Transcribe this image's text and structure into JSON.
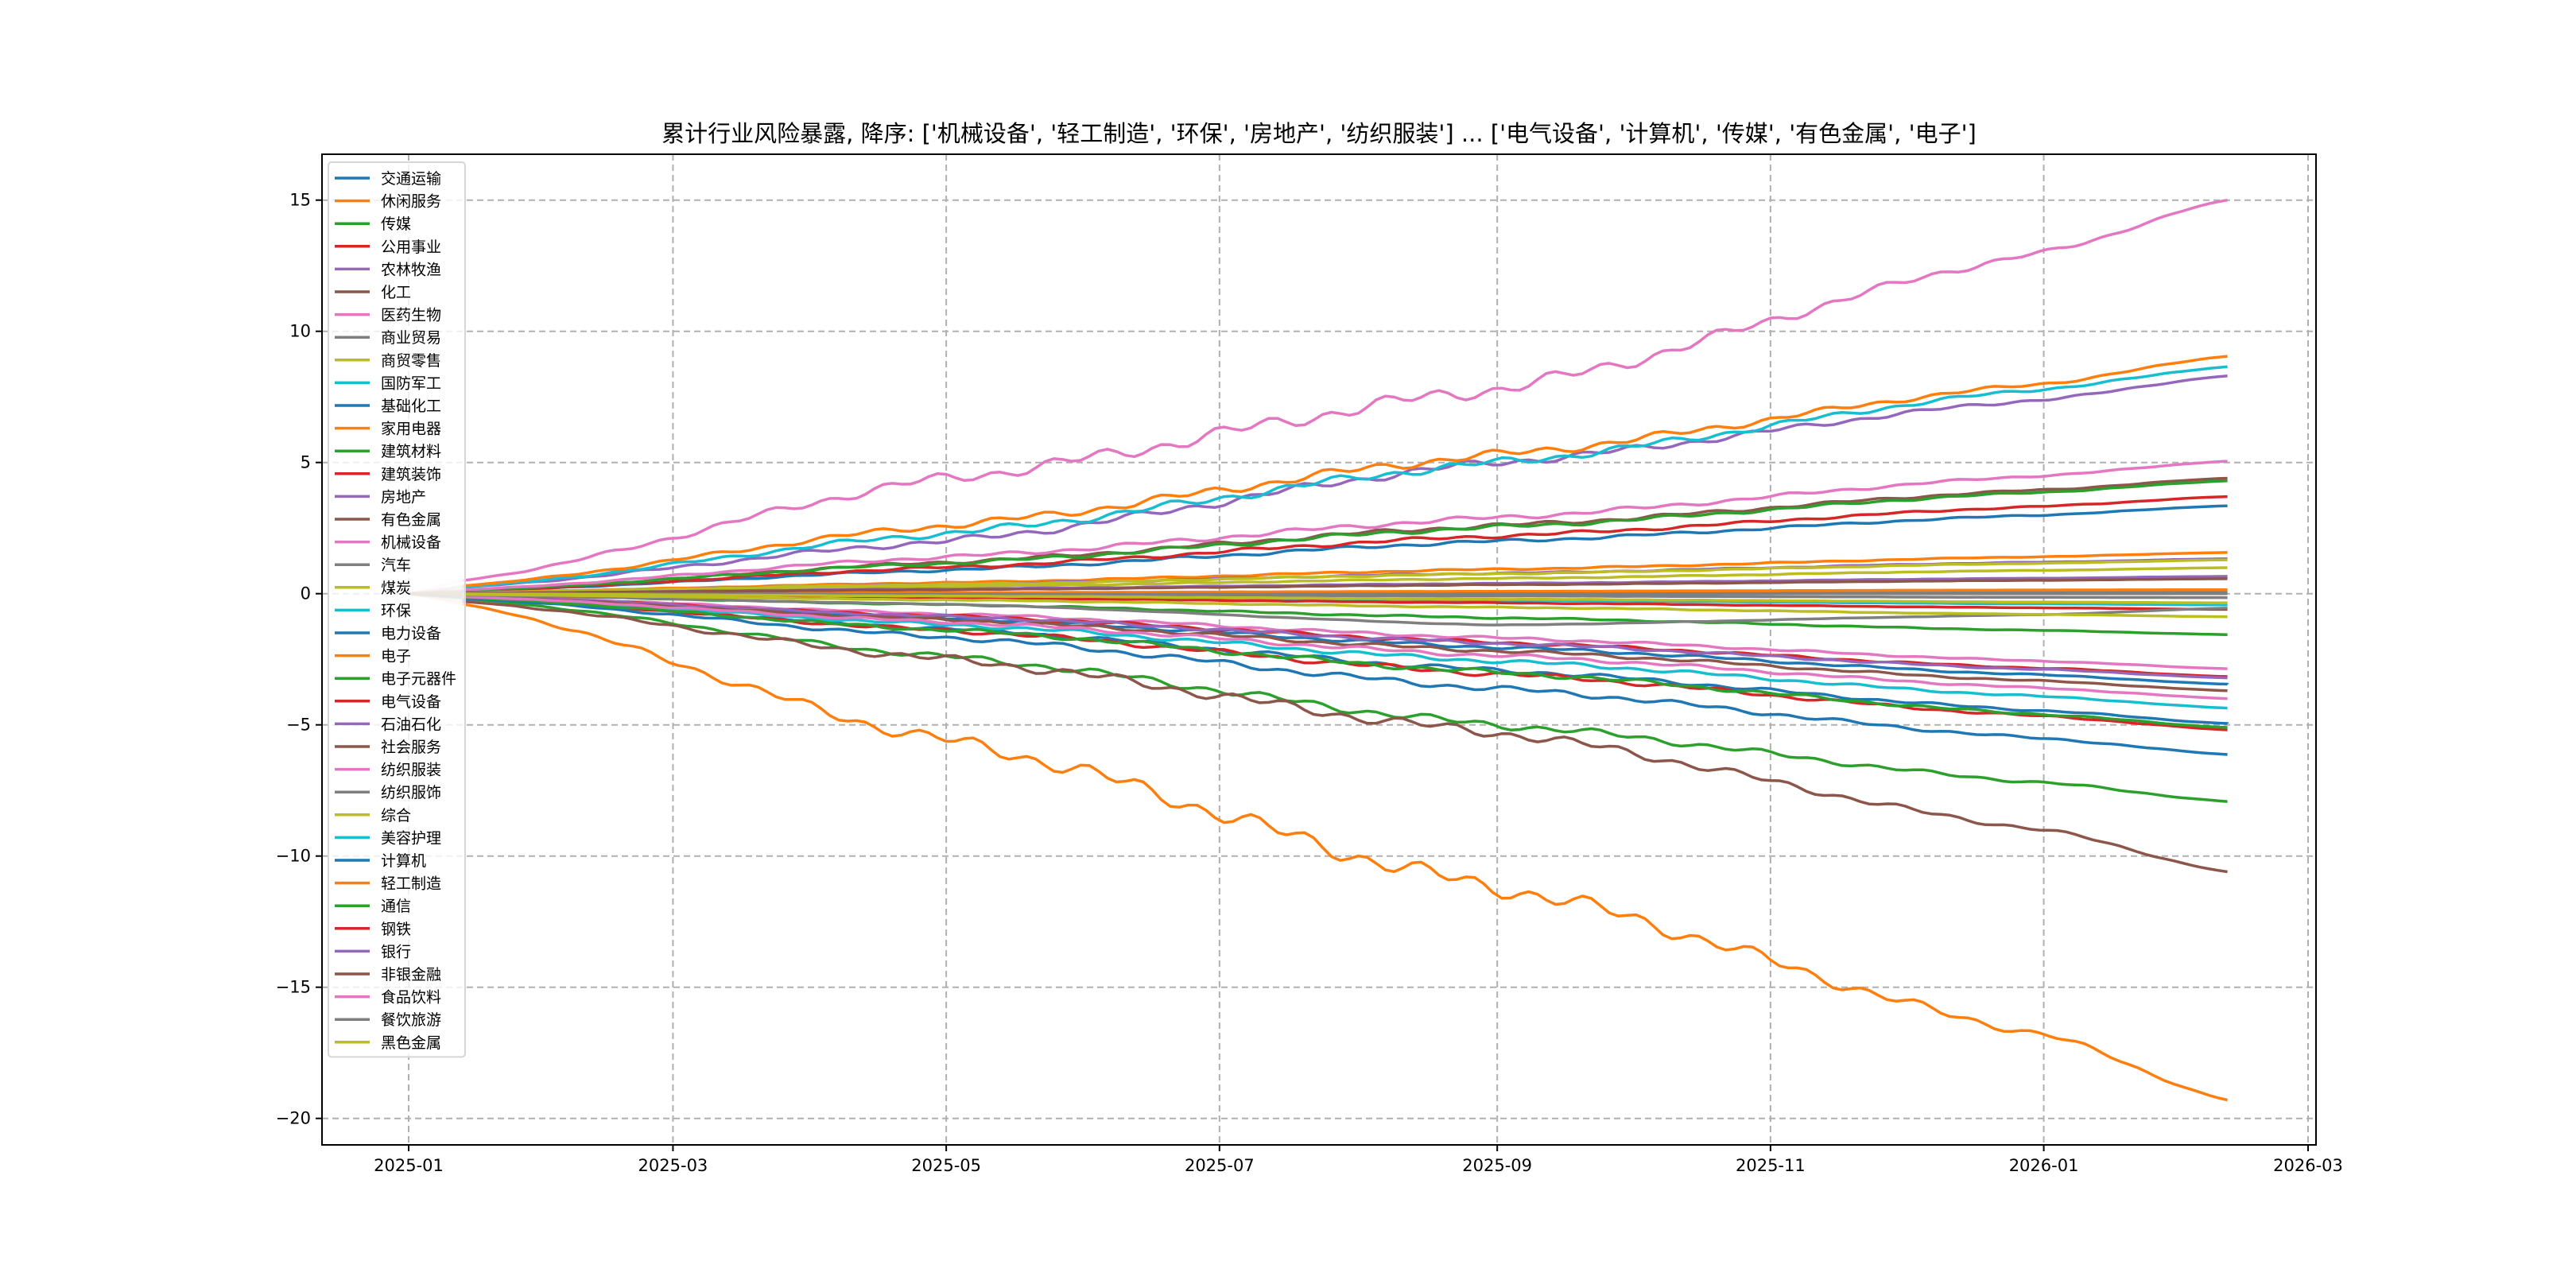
{
  "chart_data": {
    "type": "line",
    "title": "累计行业风险暴露, 降序: ['机械设备', '轻工制造', '环保', '房地产', '纺织服装'] ... ['电气设备', '计算机', '传媒', '有色金属', '电子']",
    "xlabel": "",
    "ylabel": "",
    "ylim": [
      -21,
      16.7
    ],
    "xlim": [
      "2024-12-20",
      "2026-03-05"
    ],
    "grid": true,
    "legend_position": "upper-left",
    "yticks": [
      -20,
      -15,
      -10,
      -5,
      0,
      5,
      10,
      15
    ],
    "ytick_labels": [
      "−20",
      "−15",
      "−10",
      "−5",
      "0",
      "5",
      "10",
      "15"
    ],
    "xticks": [
      "2025-01-01",
      "2025-03-01",
      "2025-05-01",
      "2025-07-01",
      "2025-09-01",
      "2025-11-01",
      "2026-01-01",
      "2026-03-01"
    ],
    "xtick_labels": [
      "2025-01",
      "2025-03",
      "2025-05",
      "2025-07",
      "2025-09",
      "2025-11",
      "2026-01",
      "2026-03"
    ],
    "x": [
      "2025-01-13",
      "2025-05-01",
      "2025-09-01",
      "2026-01-01",
      "2026-02-11"
    ],
    "series": [
      {
        "name": "交通运输",
        "color": "#1f77b4",
        "values": [
          0.1,
          0.9,
          2.0,
          3.0,
          3.35
        ]
      },
      {
        "name": "休闲服务",
        "color": "#ff7f0e",
        "values": [
          0.05,
          0.42,
          0.93,
          1.41,
          1.57
        ]
      },
      {
        "name": "传媒",
        "color": "#2ca02c",
        "values": [
          -0.2,
          -2.4,
          -5.0,
          -7.2,
          -7.92
        ]
      },
      {
        "name": "公用事业",
        "color": "#d62728",
        "values": [
          0.1,
          1.0,
          2.2,
          3.33,
          3.7
        ]
      },
      {
        "name": "农林牧渔",
        "color": "#9467bd",
        "values": [
          0.04,
          0.36,
          0.78,
          1.2,
          1.33
        ]
      },
      {
        "name": "化工",
        "color": "#8c564b",
        "values": [
          0.1,
          1.2,
          2.6,
          3.96,
          4.4
        ]
      },
      {
        "name": "医药生物",
        "color": "#e377c2",
        "values": [
          -0.08,
          -0.77,
          -1.69,
          -2.57,
          -2.86
        ]
      },
      {
        "name": "商业贸易",
        "color": "#7f7f7f",
        "values": [
          0.0,
          0.02,
          0.05,
          0.07,
          0.08
        ]
      },
      {
        "name": "商贸零售",
        "color": "#bcbd22",
        "values": [
          0.04,
          0.35,
          0.76,
          1.16,
          1.29
        ]
      },
      {
        "name": "国防军工",
        "color": "#17becf",
        "values": [
          -0.01,
          -0.12,
          -0.25,
          -0.39,
          -0.43
        ]
      },
      {
        "name": "基础化工",
        "color": "#1f77b4",
        "values": [
          -0.1,
          -0.93,
          -2.04,
          -3.1,
          -3.45
        ]
      },
      {
        "name": "家用电器",
        "color": "#ff7f0e",
        "values": [
          0.0,
          0.04,
          0.09,
          0.14,
          0.15
        ]
      },
      {
        "name": "建筑材料",
        "color": "#2ca02c",
        "values": [
          0.13,
          1.16,
          2.54,
          3.87,
          4.3
        ]
      },
      {
        "name": "建筑装饰",
        "color": "#d62728",
        "values": [
          -0.02,
          -0.16,
          -0.35,
          -0.54,
          -0.6
        ]
      },
      {
        "name": "房地产",
        "color": "#9467bd",
        "values": [
          0.25,
          2.0,
          5.0,
          7.4,
          8.3
        ]
      },
      {
        "name": "有色金属",
        "color": "#8c564b",
        "values": [
          -0.3,
          -2.5,
          -5.3,
          -9.0,
          -10.6
        ]
      },
      {
        "name": "机械设备",
        "color": "#e377c2",
        "values": [
          0.5,
          4.4,
          7.8,
          13.0,
          15.0
        ]
      },
      {
        "name": "汽车",
        "color": "#7f7f7f",
        "values": [
          0.0,
          -0.04,
          -0.09,
          -0.14,
          -0.15
        ]
      },
      {
        "name": "煤炭",
        "color": "#bcbd22",
        "values": [
          0.03,
          0.27,
          0.58,
          0.89,
          0.99
        ]
      },
      {
        "name": "环保",
        "color": "#17becf",
        "values": [
          0.25,
          2.3,
          5.0,
          7.8,
          8.65
        ]
      },
      {
        "name": "电力设备",
        "color": "#1f77b4",
        "values": [
          -0.15,
          -1.34,
          -2.92,
          -4.46,
          -4.95
        ]
      },
      {
        "name": "电子",
        "color": "#ff7f0e",
        "values": [
          -0.4,
          -5.6,
          -11.2,
          -16.8,
          -19.3
        ]
      },
      {
        "name": "电子元器件",
        "color": "#2ca02c",
        "values": [
          -0.05,
          -0.42,
          -0.92,
          -1.4,
          -1.56
        ]
      },
      {
        "name": "电气设备",
        "color": "#d62728",
        "values": [
          -0.15,
          -1.4,
          -3.06,
          -4.67,
          -5.19
        ]
      },
      {
        "name": "石油石化",
        "color": "#9467bd",
        "values": [
          0.02,
          0.18,
          0.39,
          0.59,
          0.66
        ]
      },
      {
        "name": "社会服务",
        "color": "#8c564b",
        "values": [
          0.02,
          0.15,
          0.34,
          0.51,
          0.57
        ]
      },
      {
        "name": "纺织服装",
        "color": "#e377c2",
        "values": [
          0.15,
          1.4,
          2.9,
          4.5,
          5.05
        ]
      },
      {
        "name": "纺织服饰",
        "color": "#7f7f7f",
        "values": [
          0.0,
          -0.02,
          -0.01,
          0.0,
          0.0
        ]
      },
      {
        "name": "综合",
        "color": "#bcbd22",
        "values": [
          -0.01,
          -0.09,
          -0.21,
          -0.32,
          -0.35
        ]
      },
      {
        "name": "美容护理",
        "color": "#17becf",
        "values": [
          -0.13,
          -1.18,
          -2.57,
          -3.92,
          -4.36
        ]
      },
      {
        "name": "计算机",
        "color": "#1f77b4",
        "values": [
          -0.18,
          -1.66,
          -3.62,
          -5.52,
          -6.13
        ]
      },
      {
        "name": "轻工制造",
        "color": "#ff7f0e",
        "values": [
          0.3,
          2.6,
          5.3,
          8.0,
          9.05
        ]
      },
      {
        "name": "通信",
        "color": "#2ca02c",
        "values": [
          -0.15,
          -1.38,
          -3.0,
          -4.6,
          -5.1
        ]
      },
      {
        "name": "钢铁",
        "color": "#d62728",
        "values": [
          -0.1,
          -0.85,
          -1.86,
          -2.84,
          -3.16
        ]
      },
      {
        "name": "银行",
        "color": "#9467bd",
        "values": [
          -0.1,
          -0.87,
          -1.89,
          -2.89,
          -3.21
        ]
      },
      {
        "name": "非银金融",
        "color": "#8c564b",
        "values": [
          -0.11,
          -1.0,
          -2.18,
          -3.33,
          -3.7
        ]
      },
      {
        "name": "食品饮料",
        "color": "#e377c2",
        "values": [
          -0.12,
          -1.08,
          -2.36,
          -3.6,
          -4.0
        ]
      },
      {
        "name": "餐饮旅游",
        "color": "#7f7f7f",
        "values": [
          -0.05,
          -0.4,
          -1.2,
          -0.8,
          -0.55
        ]
      },
      {
        "name": "黑色金属",
        "color": "#bcbd22",
        "values": [
          -0.03,
          -0.24,
          -0.52,
          -0.79,
          -0.88
        ]
      }
    ]
  }
}
